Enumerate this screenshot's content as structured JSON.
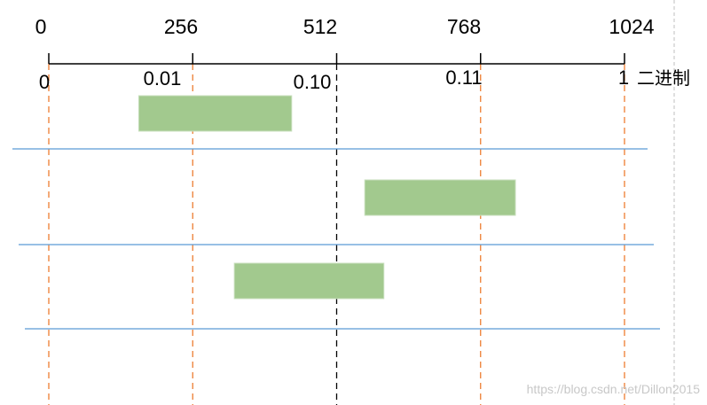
{
  "axis": {
    "decimal_ticks": [
      "0",
      "256",
      "512",
      "768",
      "1024"
    ],
    "binary_ticks": [
      "0",
      "0.01",
      "0.10",
      "0.11",
      "1"
    ],
    "binary_unit": "二进制",
    "range": [
      0,
      1024
    ]
  },
  "ranges": [
    {
      "start": 160,
      "end": 432
    },
    {
      "start": 562,
      "end": 830
    },
    {
      "start": 330,
      "end": 596
    }
  ],
  "colors": {
    "bar_fill": "#a2c98e",
    "bar_stroke": "#c8dfbd",
    "quarter_guide": "#ed7d31",
    "midpoint_guide": "#000000",
    "row_separator": "#5b9bd5",
    "axis": "#000000"
  },
  "watermark": "https://blog.csdn.net/Dillon2015"
}
